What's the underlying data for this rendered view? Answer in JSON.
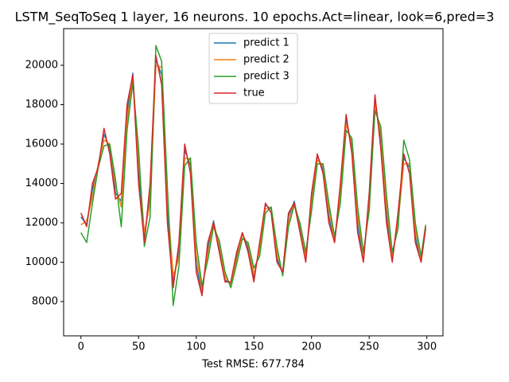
{
  "chart_data": {
    "type": "line",
    "title": "LSTM_SeqToSeq 1 layer, 16 neurons. 10 epochs.Act=linear, look=6,pred=3",
    "x_label": "Test RMSE: 677.784",
    "x": [
      0,
      5,
      10,
      15,
      20,
      25,
      30,
      35,
      40,
      45,
      50,
      55,
      60,
      65,
      70,
      75,
      80,
      85,
      90,
      95,
      100,
      105,
      110,
      115,
      120,
      125,
      130,
      135,
      140,
      145,
      150,
      155,
      160,
      165,
      170,
      175,
      180,
      185,
      190,
      195,
      200,
      205,
      210,
      215,
      220,
      225,
      230,
      235,
      240,
      245,
      250,
      255,
      260,
      265,
      270,
      275,
      280,
      285,
      290,
      295,
      299
    ],
    "series": [
      {
        "name": "predict 1",
        "color": "#1f77b4",
        "values": [
          12300,
          11900,
          13700,
          14900,
          16500,
          15800,
          13500,
          13100,
          17600,
          19600,
          14600,
          11200,
          13500,
          20300,
          19500,
          12500,
          9000,
          10600,
          15700,
          14900,
          9900,
          8400,
          10700,
          12100,
          10700,
          9100,
          8900,
          10300,
          11500,
          10700,
          9200,
          10800,
          12900,
          12700,
          10200,
          9400,
          12300,
          13100,
          11700,
          10100,
          13200,
          15400,
          14700,
          12300,
          11000,
          13700,
          17300,
          15800,
          11900,
          10100,
          13200,
          18300,
          16200,
          12400,
          10100,
          12200,
          15300,
          14800,
          11300,
          10000,
          11700
        ]
      },
      {
        "name": "predict 2",
        "color": "#ff7f0e",
        "values": [
          11900,
          12100,
          13300,
          15000,
          16200,
          16000,
          13900,
          12800,
          17100,
          19400,
          15200,
          11500,
          13000,
          20000,
          19900,
          13200,
          9300,
          10200,
          15300,
          15200,
          10400,
          8600,
          10400,
          12000,
          10900,
          9300,
          8800,
          10100,
          11400,
          10900,
          9400,
          10600,
          12700,
          12800,
          10500,
          9400,
          12000,
          13000,
          11900,
          10300,
          12900,
          15200,
          14900,
          12700,
          11100,
          13400,
          17000,
          16100,
          12400,
          10300,
          12900,
          18000,
          16600,
          12900,
          10300,
          12000,
          15000,
          15000,
          11700,
          10100,
          11700
        ]
      },
      {
        "name": "predict 3",
        "color": "#2ca02c",
        "values": [
          11500,
          11000,
          13000,
          14800,
          15900,
          16000,
          14200,
          11800,
          16700,
          19100,
          15800,
          10800,
          12300,
          21000,
          20200,
          13800,
          7800,
          9800,
          14900,
          15300,
          11000,
          8800,
          10100,
          11800,
          11100,
          9500,
          8700,
          9900,
          11200,
          11000,
          9700,
          10300,
          12500,
          12800,
          10800,
          9300,
          11800,
          12900,
          12000,
          10500,
          12600,
          15000,
          15000,
          13000,
          11300,
          13000,
          16700,
          16300,
          12800,
          10500,
          12600,
          17700,
          16900,
          13400,
          10500,
          11700,
          16200,
          15200,
          12000,
          10300,
          11900
        ]
      },
      {
        "name": "true",
        "color": "#d62728",
        "values": [
          12500,
          11800,
          14000,
          14800,
          16800,
          15500,
          13200,
          13500,
          18000,
          19500,
          14000,
          11000,
          14000,
          20500,
          19000,
          12000,
          8700,
          11000,
          16000,
          14500,
          9500,
          8300,
          11000,
          12000,
          10500,
          9000,
          9000,
          10500,
          11500,
          10500,
          9000,
          11000,
          13000,
          12500,
          10000,
          9500,
          12500,
          13000,
          11500,
          10000,
          13500,
          15500,
          14500,
          12000,
          11000,
          14000,
          17500,
          15500,
          11500,
          10000,
          13500,
          18500,
          15800,
          12000,
          10000,
          12500,
          15500,
          14500,
          11000,
          10000,
          11800
        ]
      }
    ],
    "xlim": [
      -15,
      314
    ],
    "xticks": [
      0,
      50,
      100,
      150,
      200,
      250,
      300
    ],
    "ylim": [
      6260,
      21860
    ],
    "yticks": [
      8000,
      10000,
      12000,
      14000,
      16000,
      18000,
      20000
    ],
    "legend": "upper center"
  }
}
